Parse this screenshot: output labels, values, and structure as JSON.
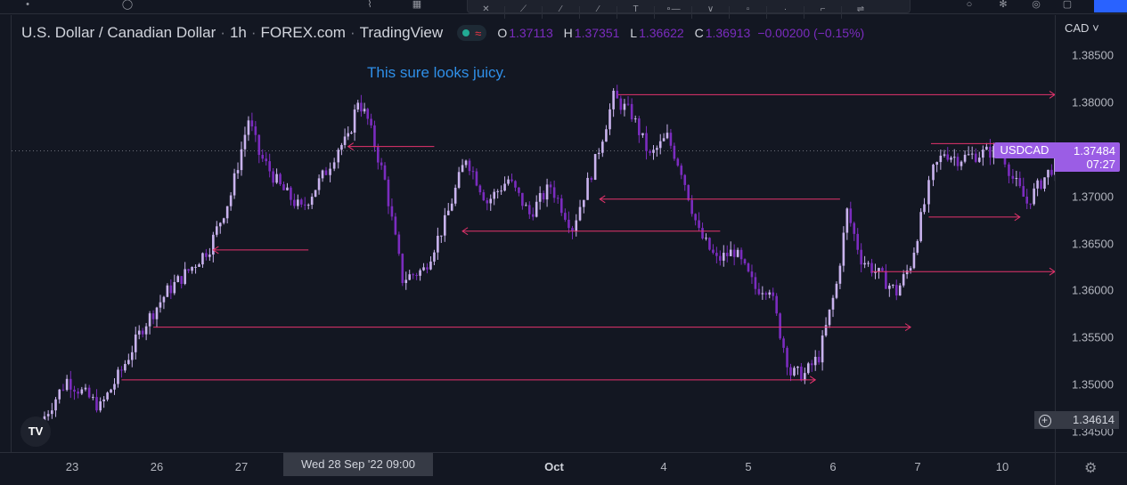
{
  "legend": {
    "symbol_name": "U.S. Dollar / Canadian Dollar",
    "interval": "1h",
    "exchange": "FOREX.com",
    "publisher": "TradingView",
    "open_label": "O",
    "open": "1.37113",
    "high_label": "H",
    "high": "1.37351",
    "low_label": "L",
    "low": "1.36622",
    "close_label": "C",
    "close": "1.36913",
    "change": "−0.00200 (−0.15%)"
  },
  "annotation": "This sure looks juicy.",
  "price_axis": {
    "currency": "CAD",
    "labels": [
      "1.38500",
      "1.38000",
      "1.37500",
      "1.37000",
      "1.36500",
      "1.36000",
      "1.35500",
      "1.35000",
      "1.34500"
    ],
    "symbol_tag": "USDCAD",
    "last_price": "1.37484",
    "countdown": "07:27",
    "crosshair_price": "1.34614"
  },
  "time_axis": {
    "labels": [
      "23",
      "26",
      "27",
      "Oct",
      "4",
      "5",
      "6",
      "7",
      "10"
    ],
    "crosshair_time": "Wed 28 Sep '22   09:00"
  },
  "colors": {
    "background": "#131722",
    "candle_up": "#c9b3ee",
    "candle_down": "#7b2cbf",
    "drawing_line": "#e5336d",
    "symbol_accent": "#9b5de5",
    "annotation_text": "#2f8fe8"
  },
  "chart_data": {
    "type": "candlestick",
    "symbol": "USDCAD",
    "interval": "1h",
    "x_ticks": [
      "23",
      "26",
      "27",
      "Oct",
      "4",
      "5",
      "6",
      "7",
      "10"
    ],
    "ylim": [
      1.3447,
      1.3863
    ],
    "close_path": [
      {
        "x": "22 Sep 18:00",
        "y": 1.346
      },
      {
        "x": "22 Sep 23:00",
        "y": 1.3505
      },
      {
        "x": "23 Sep 08:00",
        "y": 1.3476
      },
      {
        "x": "23 Sep 14:00",
        "y": 1.3515
      },
      {
        "x": "23 Sep 20:00",
        "y": 1.3561
      },
      {
        "x": "26 Sep 03:00",
        "y": 1.3599
      },
      {
        "x": "26 Sep 09:00",
        "y": 1.3621
      },
      {
        "x": "26 Sep 15:00",
        "y": 1.3646
      },
      {
        "x": "26 Sep 21:00",
        "y": 1.3702
      },
      {
        "x": "27 Sep 02:00",
        "y": 1.3782
      },
      {
        "x": "27 Sep 05:00",
        "y": 1.3745
      },
      {
        "x": "27 Sep 11:00",
        "y": 1.371
      },
      {
        "x": "27 Sep 17:00",
        "y": 1.3686
      },
      {
        "x": "28 Sep 00:00",
        "y": 1.3727
      },
      {
        "x": "28 Sep 05:00",
        "y": 1.3752
      },
      {
        "x": "28 Sep 09:00",
        "y": 1.376
      },
      {
        "x": "28 Sep 13:00",
        "y": 1.3803
      },
      {
        "x": "28 Sep 17:00",
        "y": 1.3781
      },
      {
        "x": "29 Sep 00:00",
        "y": 1.3716
      },
      {
        "x": "29 Sep 05:00",
        "y": 1.3612
      },
      {
        "x": "29 Sep 11:00",
        "y": 1.3622
      },
      {
        "x": "29 Sep 17:00",
        "y": 1.3672
      },
      {
        "x": "29 Sep 23:00",
        "y": 1.3742
      },
      {
        "x": "30 Sep 05:00",
        "y": 1.3694
      },
      {
        "x": "30 Sep 11:00",
        "y": 1.3718
      },
      {
        "x": "30 Sep 17:00",
        "y": 1.3681
      },
      {
        "x": "30 Sep 23:00",
        "y": 1.3711
      },
      {
        "x": "3 Oct 04:00",
        "y": 1.3667
      },
      {
        "x": "3 Oct 09:00",
        "y": 1.3737
      },
      {
        "x": "3 Oct 13:00",
        "y": 1.3805
      },
      {
        "x": "3 Oct 17:00",
        "y": 1.3787
      },
      {
        "x": "3 Oct 21:00",
        "y": 1.3742
      },
      {
        "x": "4 Oct 01:00",
        "y": 1.3763
      },
      {
        "x": "4 Oct 05:00",
        "y": 1.3728
      },
      {
        "x": "4 Oct 10:00",
        "y": 1.3661
      },
      {
        "x": "4 Oct 15:00",
        "y": 1.3632
      },
      {
        "x": "4 Oct 20:00",
        "y": 1.3642
      },
      {
        "x": "5 Oct 02:00",
        "y": 1.3602
      },
      {
        "x": "5 Oct 06:00",
        "y": 1.3604
      },
      {
        "x": "5 Oct 09:00",
        "y": 1.3555
      },
      {
        "x": "5 Oct 12:00",
        "y": 1.3512
      },
      {
        "x": "5 Oct 16:00",
        "y": 1.3511
      },
      {
        "x": "5 Oct 20:00",
        "y": 1.353
      },
      {
        "x": "6 Oct 01:00",
        "y": 1.3606
      },
      {
        "x": "6 Oct 04:00",
        "y": 1.3684
      },
      {
        "x": "6 Oct 08:00",
        "y": 1.3634
      },
      {
        "x": "6 Oct 13:00",
        "y": 1.3617
      },
      {
        "x": "6 Oct 18:00",
        "y": 1.3598
      },
      {
        "x": "6 Oct 22:00",
        "y": 1.3628
      },
      {
        "x": "7 Oct 03:00",
        "y": 1.3692
      },
      {
        "x": "7 Oct 07:00",
        "y": 1.3727
      },
      {
        "x": "7 Oct 12:00",
        "y": 1.3747
      },
      {
        "x": "7 Oct 18:00",
        "y": 1.374
      },
      {
        "x": "9 Oct 23:00",
        "y": 1.375
      },
      {
        "x": "10 Oct 03:00",
        "y": 1.3719
      },
      {
        "x": "10 Oct 07:00",
        "y": 1.3693
      },
      {
        "x": "10 Oct 11:00",
        "y": 1.3715
      },
      {
        "x": "10 Oct 15:00",
        "y": 1.3735
      },
      {
        "x": "10 Oct 19:00",
        "y": 1.3748
      }
    ],
    "horizontal_rays": [
      {
        "start": "23 Sep 14:00",
        "price": 1.3505,
        "direction": "right",
        "end": "5 Oct 19:00"
      },
      {
        "start": "23 Sep 23:00",
        "price": 1.3561,
        "direction": "right",
        "end": "6 Oct 22:00"
      },
      {
        "start": "26 Sep 16:00",
        "price": 1.3643,
        "direction": "left",
        "end": "27 Sep 19:00"
      },
      {
        "start": "28 Sep 09:00",
        "price": 1.3753,
        "direction": "left",
        "end": "29 Sep 14:00"
      },
      {
        "start": "29 Sep 22:00",
        "price": 1.3663,
        "direction": "left",
        "end": "4 Oct 16:00"
      },
      {
        "start": "3 Oct 10:00",
        "price": 1.3697,
        "direction": "left",
        "end": "6 Oct 02:00"
      },
      {
        "start": "3 Oct 14:00",
        "price": 1.3808,
        "direction": "right",
        "end": "right-edge"
      },
      {
        "start": "6 Oct 11:00",
        "price": 1.362,
        "direction": "right",
        "end": "right-edge"
      },
      {
        "start": "7 Oct 05:00",
        "price": 1.3678,
        "direction": "right",
        "end": "10 Oct 05:00"
      },
      {
        "start": "7 Oct 06:00",
        "price": 1.3756,
        "direction": "right",
        "end": "10 Oct 17:00"
      }
    ],
    "last_price": 1.37484
  }
}
